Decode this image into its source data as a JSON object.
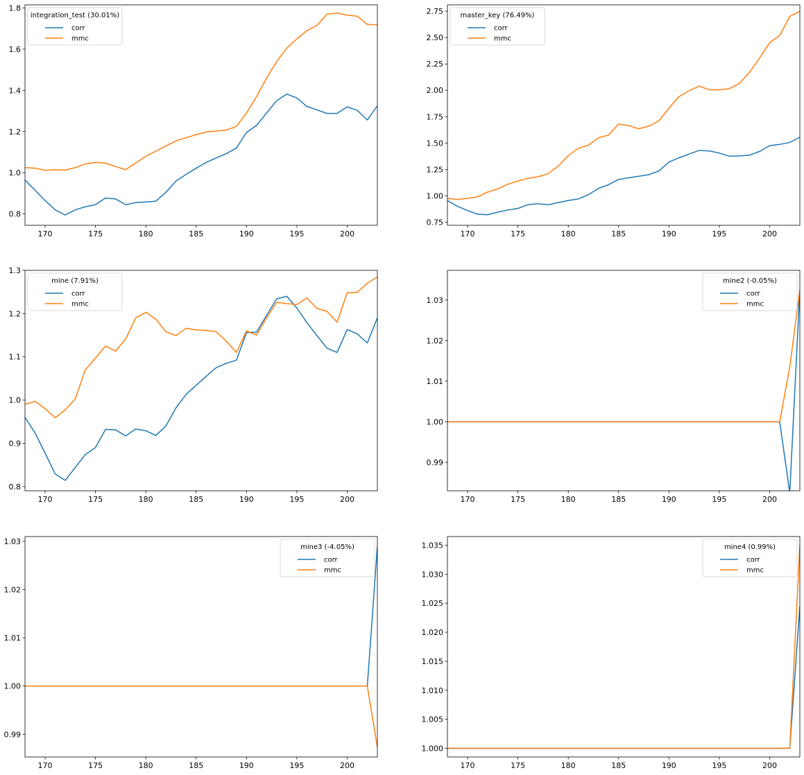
{
  "chart_data": [
    {
      "type": "line",
      "legend_title": "integration_test (30.01%)",
      "legend_placement": "upper-left",
      "x": [
        168,
        169,
        170,
        171,
        172,
        173,
        174,
        175,
        176,
        177,
        178,
        179,
        180,
        181,
        182,
        183,
        184,
        185,
        186,
        187,
        188,
        189,
        190,
        191,
        192,
        193,
        194,
        195,
        196,
        197,
        198,
        199,
        200,
        201,
        202,
        203
      ],
      "xlim": [
        168,
        203
      ],
      "ylim": [
        0.745,
        1.815
      ],
      "xticks": [
        170,
        175,
        180,
        185,
        190,
        195,
        200
      ],
      "yticks": [
        0.8,
        1.0,
        1.2,
        1.4,
        1.6,
        1.8
      ],
      "ytick_decimals": 1,
      "grid": false,
      "series": [
        {
          "name": "corr",
          "color": "#1f77b4",
          "values": [
            0.965,
            0.915,
            0.865,
            0.82,
            0.795,
            0.82,
            0.835,
            0.845,
            0.877,
            0.873,
            0.845,
            0.855,
            0.858,
            0.862,
            0.905,
            0.96,
            0.992,
            1.022,
            1.05,
            1.072,
            1.093,
            1.12,
            1.195,
            1.23,
            1.29,
            1.35,
            1.382,
            1.363,
            1.322,
            1.305,
            1.288,
            1.288,
            1.32,
            1.303,
            1.256,
            1.325
          ]
        },
        {
          "name": "mmc",
          "color": "#ff7f0e",
          "values": [
            1.025,
            1.022,
            1.012,
            1.015,
            1.013,
            1.025,
            1.043,
            1.05,
            1.047,
            1.03,
            1.015,
            1.047,
            1.08,
            1.105,
            1.13,
            1.155,
            1.17,
            1.185,
            1.198,
            1.202,
            1.207,
            1.225,
            1.29,
            1.37,
            1.46,
            1.54,
            1.605,
            1.65,
            1.69,
            1.715,
            1.77,
            1.775,
            1.765,
            1.76,
            1.72,
            1.718
          ]
        }
      ]
    },
    {
      "type": "line",
      "legend_title": "master_key (76.49%)",
      "legend_placement": "upper-left",
      "x": [
        168,
        169,
        170,
        171,
        172,
        173,
        174,
        175,
        176,
        177,
        178,
        179,
        180,
        181,
        182,
        183,
        184,
        185,
        186,
        187,
        188,
        189,
        190,
        191,
        192,
        193,
        194,
        195,
        196,
        197,
        198,
        199,
        200,
        201,
        202,
        203
      ],
      "xlim": [
        168,
        203
      ],
      "ylim": [
        0.72,
        2.81
      ],
      "xticks": [
        170,
        175,
        180,
        185,
        190,
        195,
        200
      ],
      "yticks": [
        0.75,
        1.0,
        1.25,
        1.5,
        1.75,
        2.0,
        2.25,
        2.5,
        2.75
      ],
      "ytick_decimals": 2,
      "grid": false,
      "series": [
        {
          "name": "corr",
          "color": "#1f77b4",
          "values": [
            0.955,
            0.9,
            0.86,
            0.825,
            0.82,
            0.845,
            0.865,
            0.88,
            0.915,
            0.925,
            0.915,
            0.935,
            0.955,
            0.97,
            1.01,
            1.07,
            1.105,
            1.155,
            1.17,
            1.185,
            1.2,
            1.235,
            1.32,
            1.36,
            1.395,
            1.43,
            1.425,
            1.405,
            1.375,
            1.378,
            1.385,
            1.42,
            1.475,
            1.487,
            1.505,
            1.555
          ]
        },
        {
          "name": "mmc",
          "color": "#ff7f0e",
          "values": [
            0.975,
            0.965,
            0.975,
            0.99,
            1.035,
            1.065,
            1.11,
            1.14,
            1.165,
            1.18,
            1.21,
            1.28,
            1.38,
            1.45,
            1.48,
            1.55,
            1.575,
            1.68,
            1.665,
            1.635,
            1.66,
            1.71,
            1.83,
            1.94,
            1.995,
            2.04,
            2.005,
            2.005,
            2.015,
            2.065,
            2.17,
            2.305,
            2.45,
            2.52,
            2.7,
            2.75
          ]
        }
      ]
    },
    {
      "type": "line",
      "legend_title": "mine (7.91%)",
      "legend_placement": "upper-left",
      "x": [
        168,
        169,
        170,
        171,
        172,
        173,
        174,
        175,
        176,
        177,
        178,
        179,
        180,
        181,
        182,
        183,
        184,
        185,
        186,
        187,
        188,
        189,
        190,
        191,
        192,
        193,
        194,
        195,
        196,
        197,
        198,
        199,
        200,
        201,
        202,
        203
      ],
      "xlim": [
        168,
        203
      ],
      "ylim": [
        0.79,
        1.3
      ],
      "xticks": [
        170,
        175,
        180,
        185,
        190,
        195,
        200
      ],
      "yticks": [
        0.8,
        0.9,
        1.0,
        1.1,
        1.2,
        1.3
      ],
      "ytick_decimals": 1,
      "grid": false,
      "series": [
        {
          "name": "corr",
          "color": "#1f77b4",
          "values": [
            0.96,
            0.924,
            0.877,
            0.829,
            0.814,
            0.844,
            0.874,
            0.89,
            0.932,
            0.931,
            0.917,
            0.933,
            0.929,
            0.918,
            0.94,
            0.982,
            1.013,
            1.034,
            1.055,
            1.075,
            1.085,
            1.092,
            1.156,
            1.157,
            1.196,
            1.234,
            1.24,
            1.213,
            1.179,
            1.149,
            1.12,
            1.11,
            1.163,
            1.153,
            1.132,
            1.19
          ]
        },
        {
          "name": "mmc",
          "color": "#ff7f0e",
          "values": [
            0.99,
            0.997,
            0.98,
            0.959,
            0.977,
            1.003,
            1.07,
            1.097,
            1.125,
            1.113,
            1.141,
            1.19,
            1.203,
            1.187,
            1.158,
            1.149,
            1.166,
            1.162,
            1.161,
            1.158,
            1.136,
            1.11,
            1.16,
            1.15,
            1.19,
            1.226,
            1.223,
            1.221,
            1.236,
            1.212,
            1.205,
            1.18,
            1.248,
            1.249,
            1.27,
            1.285
          ]
        }
      ]
    },
    {
      "type": "line",
      "legend_title": "mine2 (-0.05%)",
      "legend_placement": "upper-right",
      "x": [
        168,
        169,
        170,
        171,
        172,
        173,
        174,
        175,
        176,
        177,
        178,
        179,
        180,
        181,
        182,
        183,
        184,
        185,
        186,
        187,
        188,
        189,
        190,
        191,
        192,
        193,
        194,
        195,
        196,
        197,
        198,
        199,
        200,
        201,
        202,
        203
      ],
      "xlim": [
        168,
        203
      ],
      "ylim": [
        0.983,
        1.0373
      ],
      "xticks": [
        170,
        175,
        180,
        185,
        190,
        195,
        200
      ],
      "yticks": [
        0.99,
        1.0,
        1.01,
        1.02,
        1.03
      ],
      "ytick_decimals": 2,
      "grid": false,
      "series": [
        {
          "name": "corr",
          "color": "#1f77b4",
          "values": [
            1.0,
            1.0,
            1.0,
            1.0,
            1.0,
            1.0,
            1.0,
            1.0,
            1.0,
            1.0,
            1.0,
            1.0,
            1.0,
            1.0,
            1.0,
            1.0,
            1.0,
            1.0,
            1.0,
            1.0,
            1.0,
            1.0,
            1.0,
            1.0,
            1.0,
            1.0,
            1.0,
            1.0,
            1.0,
            1.0,
            1.0,
            1.0,
            1.0,
            1.0,
            0.9825,
            1.0325
          ]
        },
        {
          "name": "mmc",
          "color": "#ff7f0e",
          "values": [
            1.0,
            1.0,
            1.0,
            1.0,
            1.0,
            1.0,
            1.0,
            1.0,
            1.0,
            1.0,
            1.0,
            1.0,
            1.0,
            1.0,
            1.0,
            1.0,
            1.0,
            1.0,
            1.0,
            1.0,
            1.0,
            1.0,
            1.0,
            1.0,
            1.0,
            1.0,
            1.0,
            1.0,
            1.0,
            1.0,
            1.0,
            1.0,
            1.0,
            1.0,
            1.0135,
            1.0325
          ]
        }
      ]
    },
    {
      "type": "line",
      "legend_title": "mine3 (-4.05%)",
      "legend_placement": "upper-right",
      "x": [
        168,
        169,
        170,
        171,
        172,
        173,
        174,
        175,
        176,
        177,
        178,
        179,
        180,
        181,
        182,
        183,
        184,
        185,
        186,
        187,
        188,
        189,
        190,
        191,
        192,
        193,
        194,
        195,
        196,
        197,
        198,
        199,
        200,
        201,
        202,
        203
      ],
      "xlim": [
        168,
        203
      ],
      "ylim": [
        0.9853,
        1.031
      ],
      "xticks": [
        170,
        175,
        180,
        185,
        190,
        195,
        200
      ],
      "yticks": [
        0.99,
        1.0,
        1.01,
        1.02,
        1.03
      ],
      "ytick_decimals": 2,
      "grid": false,
      "series": [
        {
          "name": "corr",
          "color": "#1f77b4",
          "values": [
            1.0,
            1.0,
            1.0,
            1.0,
            1.0,
            1.0,
            1.0,
            1.0,
            1.0,
            1.0,
            1.0,
            1.0,
            1.0,
            1.0,
            1.0,
            1.0,
            1.0,
            1.0,
            1.0,
            1.0,
            1.0,
            1.0,
            1.0,
            1.0,
            1.0,
            1.0,
            1.0,
            1.0,
            1.0,
            1.0,
            1.0,
            1.0,
            1.0,
            1.0,
            1.0,
            1.029
          ]
        },
        {
          "name": "mmc",
          "color": "#ff7f0e",
          "values": [
            1.0,
            1.0,
            1.0,
            1.0,
            1.0,
            1.0,
            1.0,
            1.0,
            1.0,
            1.0,
            1.0,
            1.0,
            1.0,
            1.0,
            1.0,
            1.0,
            1.0,
            1.0,
            1.0,
            1.0,
            1.0,
            1.0,
            1.0,
            1.0,
            1.0,
            1.0,
            1.0,
            1.0,
            1.0,
            1.0,
            1.0,
            1.0,
            1.0,
            1.0,
            1.0,
            0.9873
          ]
        }
      ]
    },
    {
      "type": "line",
      "legend_title": "mine4 (0.99%)",
      "legend_placement": "upper-right",
      "x": [
        168,
        169,
        170,
        171,
        172,
        173,
        174,
        175,
        176,
        177,
        178,
        179,
        180,
        181,
        182,
        183,
        184,
        185,
        186,
        187,
        188,
        189,
        190,
        191,
        192,
        193,
        194,
        195,
        196,
        197,
        198,
        199,
        200,
        201,
        202,
        203
      ],
      "xlim": [
        168,
        203
      ],
      "ylim": [
        0.9985,
        1.0365
      ],
      "xticks": [
        170,
        175,
        180,
        185,
        190,
        195,
        200
      ],
      "yticks": [
        1.0,
        1.005,
        1.01,
        1.015,
        1.02,
        1.025,
        1.03,
        1.035
      ],
      "ytick_decimals": 3,
      "grid": false,
      "series": [
        {
          "name": "corr",
          "color": "#1f77b4",
          "values": [
            1.0,
            1.0,
            1.0,
            1.0,
            1.0,
            1.0,
            1.0,
            1.0,
            1.0,
            1.0,
            1.0,
            1.0,
            1.0,
            1.0,
            1.0,
            1.0,
            1.0,
            1.0,
            1.0,
            1.0,
            1.0,
            1.0,
            1.0,
            1.0,
            1.0,
            1.0,
            1.0,
            1.0,
            1.0,
            1.0,
            1.0,
            1.0,
            1.0,
            1.0,
            1.0,
            1.0245
          ]
        },
        {
          "name": "mmc",
          "color": "#ff7f0e",
          "values": [
            1.0,
            1.0,
            1.0,
            1.0,
            1.0,
            1.0,
            1.0,
            1.0,
            1.0,
            1.0,
            1.0,
            1.0,
            1.0,
            1.0,
            1.0,
            1.0,
            1.0,
            1.0,
            1.0,
            1.0,
            1.0,
            1.0,
            1.0,
            1.0,
            1.0,
            1.0,
            1.0,
            1.0,
            1.0,
            1.0,
            1.0,
            1.0,
            1.0,
            1.0,
            1.0,
            1.035
          ]
        }
      ]
    }
  ]
}
